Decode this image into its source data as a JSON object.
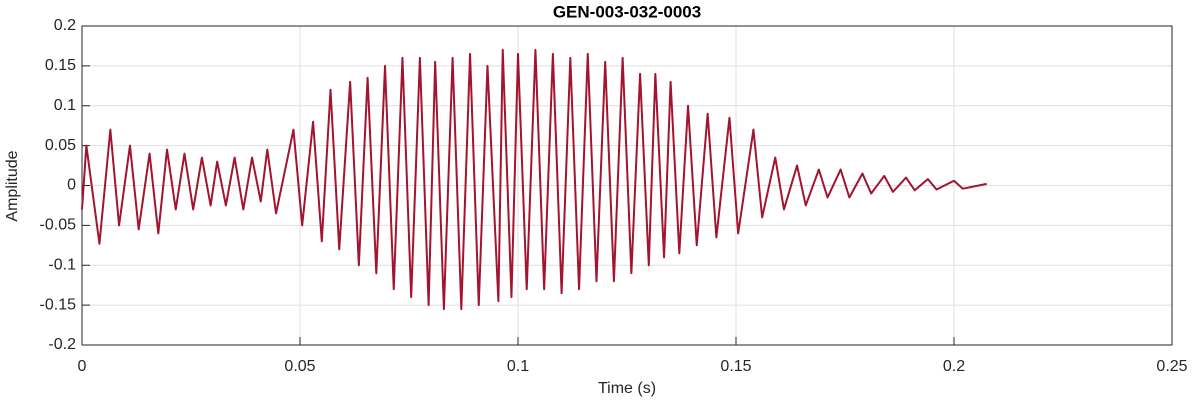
{
  "chart_data": {
    "type": "line",
    "title": "GEN-003-032-0003",
    "xlabel": "Time (s)",
    "ylabel": "Amplitude",
    "x": [
      0,
      0.001,
      0.004,
      0.0065,
      0.0085,
      0.011,
      0.013,
      0.0155,
      0.0175,
      0.0195,
      0.0215,
      0.0235,
      0.0255,
      0.0275,
      0.0295,
      0.031,
      0.033,
      0.035,
      0.037,
      0.039,
      0.041,
      0.0425,
      0.0445,
      0.0485,
      0.0505,
      0.053,
      0.055,
      0.057,
      0.059,
      0.0615,
      0.0635,
      0.0655,
      0.0675,
      0.0695,
      0.0715,
      0.0735,
      0.0755,
      0.0775,
      0.0795,
      0.081,
      0.083,
      0.085,
      0.087,
      0.089,
      0.091,
      0.093,
      0.0955,
      0.0965,
      0.0985,
      0.1,
      0.102,
      0.104,
      0.106,
      0.108,
      0.11,
      0.112,
      0.114,
      0.116,
      0.118,
      0.12,
      0.122,
      0.124,
      0.126,
      0.128,
      0.13,
      0.1315,
      0.1335,
      0.135,
      0.137,
      0.139,
      0.141,
      0.1435,
      0.1455,
      0.1485,
      0.1505,
      0.154,
      0.156,
      0.159,
      0.161,
      0.164,
      0.166,
      0.169,
      0.171,
      0.174,
      0.176,
      0.179,
      0.181,
      0.184,
      0.186,
      0.189,
      0.191,
      0.194,
      0.196,
      0.2,
      0.202,
      0.2075
    ],
    "values": [
      -0.03,
      0.05,
      -0.073,
      0.07,
      -0.05,
      0.05,
      -0.055,
      0.04,
      -0.06,
      0.045,
      -0.03,
      0.04,
      -0.03,
      0.035,
      -0.025,
      0.03,
      -0.025,
      0.035,
      -0.03,
      0.035,
      -0.02,
      0.045,
      -0.035,
      0.07,
      -0.05,
      0.08,
      -0.07,
      0.12,
      -0.08,
      0.13,
      -0.1,
      0.135,
      -0.11,
      0.15,
      -0.13,
      0.16,
      -0.14,
      0.16,
      -0.15,
      0.155,
      -0.155,
      0.16,
      -0.155,
      0.165,
      -0.15,
      0.15,
      -0.145,
      0.17,
      -0.14,
      0.165,
      -0.13,
      0.17,
      -0.13,
      0.165,
      -0.135,
      0.16,
      -0.13,
      0.165,
      -0.12,
      0.155,
      -0.12,
      0.16,
      -0.11,
      0.14,
      -0.1,
      0.14,
      -0.09,
      0.13,
      -0.085,
      0.1,
      -0.075,
      0.09,
      -0.065,
      0.085,
      -0.06,
      0.07,
      -0.04,
      0.035,
      -0.03,
      0.025,
      -0.025,
      0.02,
      -0.015,
      0.02,
      -0.015,
      0.015,
      -0.01,
      0.012,
      -0.008,
      0.01,
      -0.006,
      0.008,
      -0.005,
      0.006,
      -0.004,
      0.002
    ],
    "color": "#a2142f",
    "xlim": [
      0,
      0.25
    ],
    "xticks": [
      0,
      0.05,
      0.1,
      0.15,
      0.2,
      0.25
    ],
    "ylim": [
      -0.2,
      0.2
    ],
    "yticks": [
      -0.2,
      -0.15,
      -0.1,
      -0.05,
      0,
      0.05,
      0.1,
      0.15,
      0.2
    ],
    "grid": true
  }
}
